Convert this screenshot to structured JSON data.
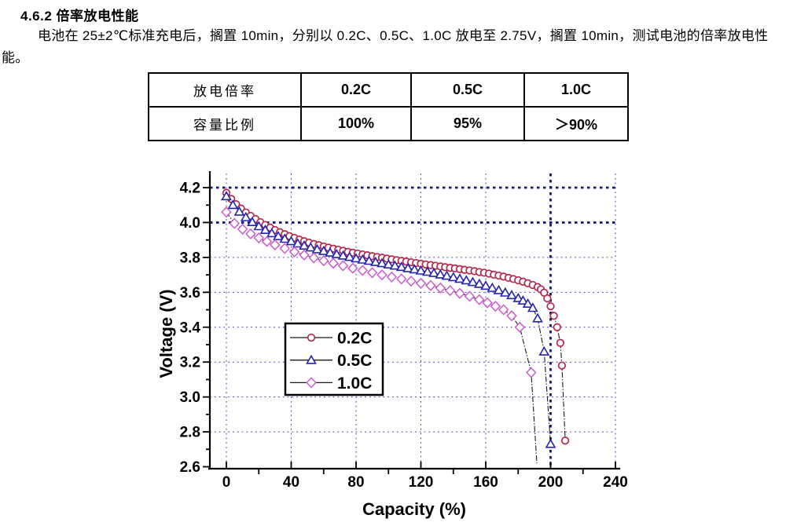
{
  "page": {
    "heading": "4.6.2 倍率放电性能",
    "paragraph": "电池在 25±2℃标准充电后，搁置 10min，分别以 0.2C、0.5C、1.0C 放电至 2.75V，搁置 10min，测试电池的倍率放电性能。"
  },
  "table": {
    "rows": [
      [
        "放电倍率",
        "0.2C",
        "0.5C",
        "1.0C"
      ],
      [
        "容量比例",
        "100%",
        "95%",
        "＞90%"
      ]
    ]
  },
  "chart_data": {
    "type": "scatter",
    "title": "",
    "xlabel": "Capacity (%)",
    "ylabel": "Voltage (V)",
    "xlim": [
      -17,
      244
    ],
    "ylim": [
      2.59,
      4.31
    ],
    "x_ticks": [
      0,
      40,
      80,
      120,
      160,
      200,
      240
    ],
    "x_minor_ticks": [
      20,
      60,
      100,
      140,
      180,
      220
    ],
    "y_ticks": [
      2.6,
      2.8,
      3.0,
      3.2,
      3.4,
      3.6,
      3.8,
      4.0,
      4.2
    ],
    "y_minor_ticks": [
      2.7,
      2.9,
      3.1,
      3.3,
      3.5,
      3.7,
      3.9,
      4.1
    ],
    "grid": true,
    "heavy_gridlines": {
      "x": [
        200
      ],
      "y": [
        4.0,
        4.2
      ]
    },
    "legend_position": "inside-left-middle",
    "colors": {
      "grid": "#3b3bc8",
      "grid_heavy": "#14147a",
      "line": "#1a1a1a"
    },
    "series": [
      {
        "name": "0.2C",
        "marker": "circle",
        "color": "#b5294a",
        "points": [
          [
            0,
            4.17
          ],
          [
            3,
            4.135
          ],
          [
            6,
            4.105
          ],
          [
            9,
            4.08
          ],
          [
            12,
            4.058
          ],
          [
            15,
            4.038
          ],
          [
            18,
            4.02
          ],
          [
            21,
            4.002
          ],
          [
            24,
            3.986
          ],
          [
            27,
            3.971
          ],
          [
            30,
            3.957
          ],
          [
            33,
            3.945
          ],
          [
            36,
            3.933
          ],
          [
            39,
            3.922
          ],
          [
            42,
            3.912
          ],
          [
            45,
            3.902
          ],
          [
            48,
            3.893
          ],
          [
            51,
            3.885
          ],
          [
            54,
            3.877
          ],
          [
            57,
            3.87
          ],
          [
            60,
            3.863
          ],
          [
            63,
            3.856
          ],
          [
            66,
            3.85
          ],
          [
            69,
            3.844
          ],
          [
            72,
            3.838
          ],
          [
            75,
            3.832
          ],
          [
            78,
            3.827
          ],
          [
            81,
            3.822
          ],
          [
            84,
            3.817
          ],
          [
            87,
            3.812
          ],
          [
            90,
            3.807
          ],
          [
            93,
            3.802
          ],
          [
            96,
            3.798
          ],
          [
            99,
            3.793
          ],
          [
            102,
            3.789
          ],
          [
            105,
            3.784
          ],
          [
            108,
            3.78
          ],
          [
            111,
            3.776
          ],
          [
            114,
            3.772
          ],
          [
            117,
            3.768
          ],
          [
            120,
            3.764
          ],
          [
            123,
            3.76
          ],
          [
            126,
            3.756
          ],
          [
            129,
            3.752
          ],
          [
            132,
            3.748
          ],
          [
            135,
            3.744
          ],
          [
            138,
            3.74
          ],
          [
            141,
            3.737
          ],
          [
            144,
            3.733
          ],
          [
            147,
            3.729
          ],
          [
            150,
            3.725
          ],
          [
            153,
            3.721
          ],
          [
            156,
            3.716
          ],
          [
            159,
            3.712
          ],
          [
            162,
            3.707
          ],
          [
            165,
            3.701
          ],
          [
            168,
            3.696
          ],
          [
            171,
            3.69
          ],
          [
            174,
            3.683
          ],
          [
            177,
            3.676
          ],
          [
            180,
            3.669
          ],
          [
            183,
            3.661
          ],
          [
            186,
            3.652
          ],
          [
            189,
            3.642
          ],
          [
            192,
            3.63
          ],
          [
            194,
            3.617
          ],
          [
            196,
            3.598
          ],
          [
            198,
            3.565
          ],
          [
            200,
            3.52
          ],
          [
            202,
            3.465
          ],
          [
            204,
            3.4
          ],
          [
            206,
            3.31
          ],
          [
            207,
            3.18
          ],
          [
            209,
            2.75
          ]
        ]
      },
      {
        "name": "0.5C",
        "marker": "triangle",
        "color": "#2424ad",
        "points": [
          [
            0,
            4.15
          ],
          [
            4,
            4.1
          ],
          [
            8,
            4.062
          ],
          [
            12,
            4.03
          ],
          [
            16,
            4.002
          ],
          [
            20,
            3.978
          ],
          [
            24,
            3.957
          ],
          [
            28,
            3.938
          ],
          [
            32,
            3.921
          ],
          [
            36,
            3.906
          ],
          [
            40,
            3.892
          ],
          [
            44,
            3.879
          ],
          [
            48,
            3.867
          ],
          [
            52,
            3.856
          ],
          [
            56,
            3.846
          ],
          [
            60,
            3.836
          ],
          [
            64,
            3.827
          ],
          [
            68,
            3.818
          ],
          [
            72,
            3.81
          ],
          [
            76,
            3.802
          ],
          [
            80,
            3.794
          ],
          [
            84,
            3.787
          ],
          [
            88,
            3.78
          ],
          [
            92,
            3.773
          ],
          [
            96,
            3.766
          ],
          [
            100,
            3.759
          ],
          [
            104,
            3.752
          ],
          [
            108,
            3.745
          ],
          [
            112,
            3.738
          ],
          [
            116,
            3.731
          ],
          [
            120,
            3.724
          ],
          [
            124,
            3.717
          ],
          [
            128,
            3.71
          ],
          [
            132,
            3.702
          ],
          [
            136,
            3.694
          ],
          [
            140,
            3.686
          ],
          [
            144,
            3.677
          ],
          [
            148,
            3.668
          ],
          [
            152,
            3.658
          ],
          [
            156,
            3.648
          ],
          [
            160,
            3.637
          ],
          [
            164,
            3.625
          ],
          [
            168,
            3.612
          ],
          [
            172,
            3.598
          ],
          [
            176,
            3.583
          ],
          [
            180,
            3.566
          ],
          [
            183,
            3.552
          ],
          [
            186,
            3.534
          ],
          [
            189,
            3.51
          ],
          [
            192,
            3.45
          ],
          [
            196,
            3.26
          ],
          [
            200,
            2.73
          ]
        ]
      },
      {
        "name": "1.0C",
        "marker": "diamond",
        "color": "#cc5ccc",
        "points": [
          [
            0,
            4.06
          ],
          [
            5,
            3.995
          ],
          [
            10,
            3.962
          ],
          [
            15,
            3.935
          ],
          [
            20,
            3.912
          ],
          [
            25,
            3.891
          ],
          [
            30,
            3.872
          ],
          [
            36,
            3.851
          ],
          [
            42,
            3.832
          ],
          [
            48,
            3.814
          ],
          [
            54,
            3.797
          ],
          [
            60,
            3.781
          ],
          [
            66,
            3.766
          ],
          [
            72,
            3.752
          ],
          [
            78,
            3.738
          ],
          [
            84,
            3.725
          ],
          [
            90,
            3.712
          ],
          [
            96,
            3.7
          ],
          [
            102,
            3.688
          ],
          [
            108,
            3.676
          ],
          [
            114,
            3.664
          ],
          [
            120,
            3.652
          ],
          [
            126,
            3.639
          ],
          [
            132,
            3.625
          ],
          [
            138,
            3.61
          ],
          [
            144,
            3.594
          ],
          [
            150,
            3.577
          ],
          [
            156,
            3.558
          ],
          [
            161,
            3.54
          ],
          [
            166,
            3.52
          ],
          [
            171,
            3.5
          ],
          [
            176,
            3.465
          ],
          [
            181,
            3.4
          ],
          [
            188,
            3.14
          ]
        ],
        "tail": [
          191.5,
          2.62
        ]
      }
    ]
  }
}
